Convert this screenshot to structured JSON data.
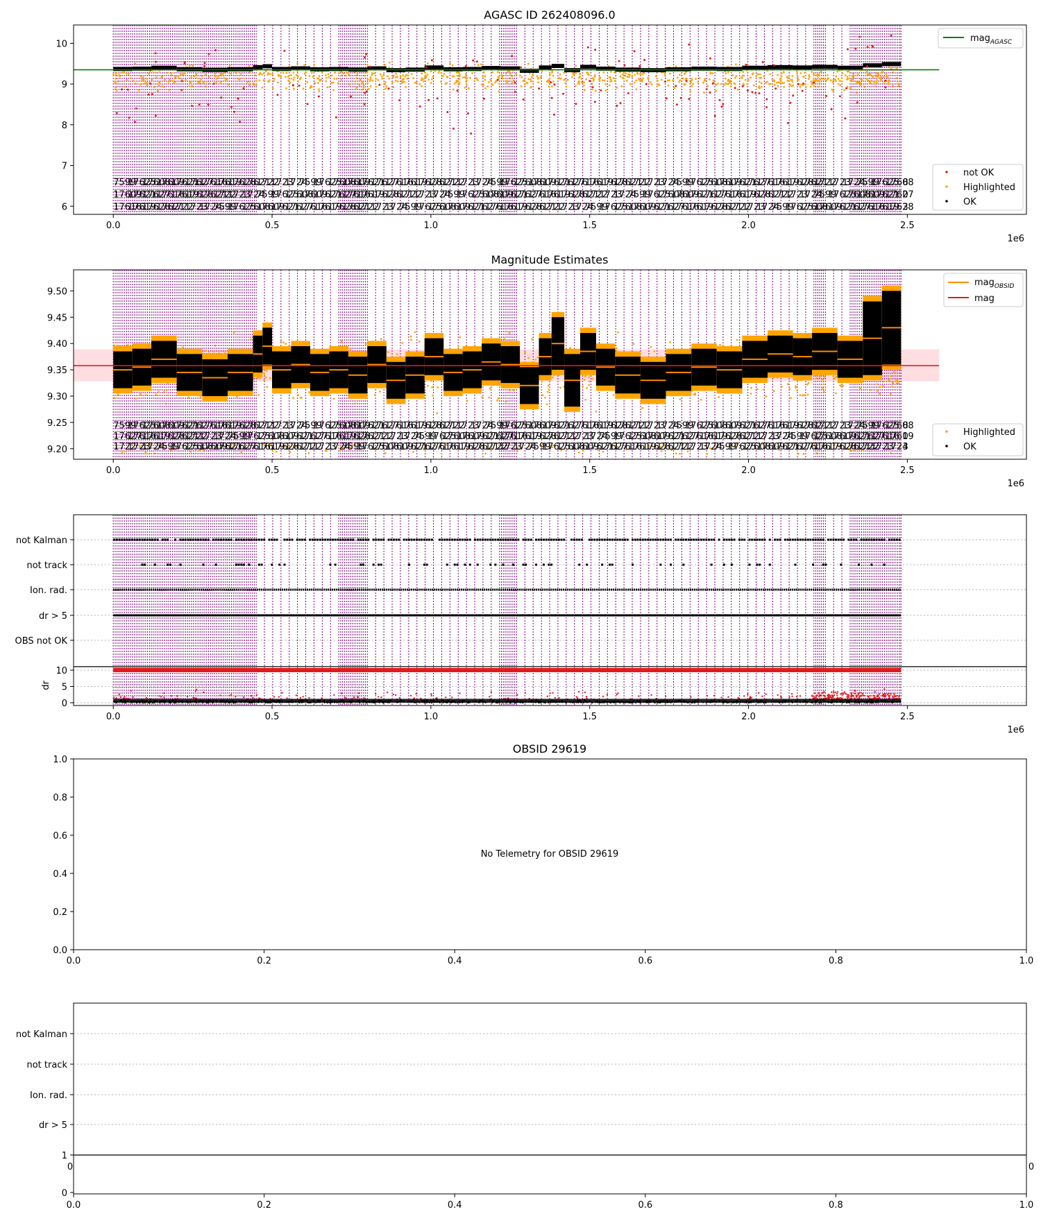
{
  "figure": {
    "background": "#ffffff"
  },
  "colors": {
    "ok": "#000000",
    "highlighted": "#ffa500",
    "not_ok": "#e31a1c",
    "agasc_line": "#008000",
    "obsid_line": "#ff8c00",
    "mag_line": "#e31a1c",
    "mag_band": "#ffd6da",
    "obsid_separator": "#800080",
    "grid": "#b0b0b0"
  },
  "chart_data": [
    {
      "id": "agasc",
      "type": "scatter",
      "title": "AGASC ID 262408096.0",
      "xlabel": "",
      "ylabel": "",
      "x_offset_label": "1e6",
      "xlim": [
        -0.125,
        2.875
      ],
      "ylim": [
        5.8,
        10.45
      ],
      "xticks": [
        0.0,
        0.5,
        1.0,
        1.5,
        2.0,
        2.5
      ],
      "xtick_labels": [
        "0.0",
        "0.5",
        "1.0",
        "1.5",
        "2.0",
        "2.5"
      ],
      "yticks": [
        6,
        7,
        8,
        9,
        10
      ],
      "ytick_labels": [
        "6",
        "7",
        "8",
        "9",
        "10"
      ],
      "data_x_range": [
        0.0,
        2.48
      ],
      "series": [
        {
          "name": "not OK",
          "kind": "points",
          "y_center": 9.05,
          "y_spread": 0.9,
          "count": 140,
          "color_key": "not_ok"
        },
        {
          "name": "Highlighted",
          "kind": "points",
          "y_center": 9.2,
          "y_spread": 0.35,
          "count": 900,
          "color_key": "highlighted"
        },
        {
          "name": "OK",
          "kind": "band",
          "y_center": 9.36,
          "y_spread": 0.05,
          "color_key": "ok"
        }
      ],
      "reference_line": {
        "name": "mag$_{AGASC}$",
        "y": 9.35,
        "x_range": [
          -0.125,
          2.6
        ],
        "color_key": "agasc_line"
      },
      "legend_top": {
        "position": "top-right",
        "entries": [
          {
            "label": "mag",
            "sub": "AGASC",
            "color_key": "agasc_line",
            "marker": "line"
          }
        ]
      },
      "legend_bottom": {
        "position": "bottom-right",
        "entries": [
          {
            "label": "not OK",
            "color_key": "not_ok",
            "marker": "dot"
          },
          {
            "label": "Highlighted",
            "color_key": "highlighted",
            "marker": "dot"
          },
          {
            "label": "OK",
            "color_key": "ok",
            "marker": "dot"
          }
        ]
      },
      "obsid_label_rows": {
        "first": "5239",
        "y": [
          6.6,
          6.3,
          6.0
        ],
        "row_starts": [
          "5?",
          "5?",
          "36"
        ],
        "legible_fragments": [
          "7599",
          "17625",
          "17608",
          "17609",
          "17621",
          "17627",
          "17616",
          "17619",
          "17628",
          "17621",
          "1722",
          "1723",
          "1724"
        ],
        "last": [
          "8",
          "0",
          "3"
        ]
      }
    },
    {
      "id": "magnitude",
      "type": "scatter",
      "title": "Magnitude Estimates",
      "xlabel": "",
      "ylabel": "",
      "x_offset_label": "1e6",
      "xlim": [
        -0.125,
        2.875
      ],
      "ylim": [
        9.18,
        9.54
      ],
      "xticks": [
        0.0,
        0.5,
        1.0,
        1.5,
        2.0,
        2.5
      ],
      "xtick_labels": [
        "0.0",
        "0.5",
        "1.0",
        "1.5",
        "2.0",
        "2.5"
      ],
      "yticks": [
        9.2,
        9.25,
        9.3,
        9.35,
        9.4,
        9.45,
        9.5
      ],
      "ytick_labels": [
        "9.20",
        "9.25",
        "9.30",
        "9.35",
        "9.40",
        "9.45",
        "9.50"
      ],
      "data_x_range": [
        0.0,
        2.48
      ],
      "mag_line": {
        "name": "mag",
        "y": 9.358,
        "band": [
          9.328,
          9.389
        ],
        "x_range": [
          -0.125,
          2.6
        ],
        "color_key": "mag_line"
      },
      "segments": [
        {
          "x0": 0.0,
          "x1": 0.06,
          "y": 9.35
        },
        {
          "x0": 0.06,
          "x1": 0.12,
          "y": 9.355
        },
        {
          "x0": 0.12,
          "x1": 0.2,
          "y": 9.37
        },
        {
          "x0": 0.2,
          "x1": 0.28,
          "y": 9.345
        },
        {
          "x0": 0.28,
          "x1": 0.36,
          "y": 9.335
        },
        {
          "x0": 0.36,
          "x1": 0.44,
          "y": 9.345
        },
        {
          "x0": 0.44,
          "x1": 0.47,
          "y": 9.38
        },
        {
          "x0": 0.47,
          "x1": 0.5,
          "y": 9.395
        },
        {
          "x0": 0.5,
          "x1": 0.56,
          "y": 9.35
        },
        {
          "x0": 0.56,
          "x1": 0.62,
          "y": 9.36
        },
        {
          "x0": 0.62,
          "x1": 0.68,
          "y": 9.345
        },
        {
          "x0": 0.68,
          "x1": 0.74,
          "y": 9.35
        },
        {
          "x0": 0.74,
          "x1": 0.8,
          "y": 9.34
        },
        {
          "x0": 0.8,
          "x1": 0.86,
          "y": 9.36
        },
        {
          "x0": 0.86,
          "x1": 0.92,
          "y": 9.33
        },
        {
          "x0": 0.92,
          "x1": 0.98,
          "y": 9.34
        },
        {
          "x0": 0.98,
          "x1": 1.04,
          "y": 9.375
        },
        {
          "x0": 1.04,
          "x1": 1.1,
          "y": 9.345
        },
        {
          "x0": 1.1,
          "x1": 1.16,
          "y": 9.35
        },
        {
          "x0": 1.16,
          "x1": 1.22,
          "y": 9.365
        },
        {
          "x0": 1.22,
          "x1": 1.28,
          "y": 9.36
        },
        {
          "x0": 1.28,
          "x1": 1.34,
          "y": 9.32
        },
        {
          "x0": 1.34,
          "x1": 1.38,
          "y": 9.375
        },
        {
          "x0": 1.38,
          "x1": 1.42,
          "y": 9.4
        },
        {
          "x0": 1.42,
          "x1": 1.47,
          "y": 9.33
        },
        {
          "x0": 1.47,
          "x1": 1.52,
          "y": 9.385
        },
        {
          "x0": 1.52,
          "x1": 1.58,
          "y": 9.355
        },
        {
          "x0": 1.58,
          "x1": 1.66,
          "y": 9.34
        },
        {
          "x0": 1.66,
          "x1": 1.74,
          "y": 9.33
        },
        {
          "x0": 1.74,
          "x1": 1.82,
          "y": 9.345
        },
        {
          "x0": 1.82,
          "x1": 1.9,
          "y": 9.355
        },
        {
          "x0": 1.9,
          "x1": 1.98,
          "y": 9.35
        },
        {
          "x0": 1.98,
          "x1": 2.06,
          "y": 9.37
        },
        {
          "x0": 2.06,
          "x1": 2.14,
          "y": 9.38
        },
        {
          "x0": 2.14,
          "x1": 2.2,
          "y": 9.375
        },
        {
          "x0": 2.2,
          "x1": 2.28,
          "y": 9.385
        },
        {
          "x0": 2.28,
          "x1": 2.36,
          "y": 9.37
        },
        {
          "x0": 2.36,
          "x1": 2.42,
          "y": 9.41
        },
        {
          "x0": 2.42,
          "x1": 2.48,
          "y": 9.43
        }
      ],
      "legend_top": {
        "position": "top-right",
        "entries": [
          {
            "label": "mag",
            "sub": "OBSID",
            "color_key": "obsid_line",
            "marker": "line"
          },
          {
            "label": "mag",
            "color_key": "mag_line",
            "marker": "line"
          }
        ]
      },
      "legend_bottom": {
        "position": "bottom-right",
        "entries": [
          {
            "label": "Highlighted",
            "color_key": "highlighted",
            "marker": "dot"
          },
          {
            "label": "OK",
            "color_key": "ok",
            "marker": "dot"
          }
        ]
      },
      "obsid_label_rows": {
        "y": [
          9.245,
          9.225,
          9.205
        ]
      }
    },
    {
      "id": "flags",
      "type": "scatter",
      "title": "",
      "xlabel": "",
      "ylabel": "dr",
      "x_offset_label": "1e6",
      "xlim": [
        -0.125,
        2.875
      ],
      "xticks": [
        0.0,
        0.5,
        1.0,
        1.5,
        2.0,
        2.5
      ],
      "xtick_labels": [
        "0.0",
        "0.5",
        "1.0",
        "1.5",
        "2.0",
        "2.5"
      ],
      "flag_rows": [
        "not Kalman",
        "not track",
        "Ion. rad.",
        "dr > 5",
        "OBS not OK"
      ],
      "dr_yticks": [
        0,
        5,
        10
      ],
      "dr_ytick_labels": [
        "0",
        "5",
        "10"
      ],
      "dr_ylim": [
        -0.3,
        10.6
      ]
    },
    {
      "id": "obsid",
      "type": "scatter",
      "title": "OBSID 29619",
      "message": "No Telemetry for OBSID 29619",
      "xlim": [
        0,
        1
      ],
      "ylim": [
        0,
        1
      ],
      "xticks": [
        0.0,
        0.2,
        0.4,
        0.6,
        0.8,
        1.0
      ],
      "xtick_labels": [
        "0.0",
        "0.2",
        "0.4",
        "0.6",
        "0.8",
        "1.0"
      ],
      "yticks": [
        0.0,
        0.2,
        0.4,
        0.6,
        0.8,
        1.0
      ],
      "ytick_labels": [
        "0.0",
        "0.2",
        "0.4",
        "0.6",
        "0.8",
        "1.0"
      ]
    },
    {
      "id": "obsid-flags",
      "type": "scatter",
      "title": "",
      "flag_rows": [
        "not Kalman",
        "not track",
        "Ion. rad.",
        "dr > 5"
      ],
      "sub_yticks": [
        0,
        1
      ],
      "sub_ytick_labels": [
        "0",
        "1"
      ],
      "xticks": [
        0.0,
        0.2,
        0.4,
        0.6,
        0.8,
        1.0
      ],
      "xtick_labels": [
        "0.0",
        "0.2",
        "0.4",
        "0.6",
        "0.8",
        "1.0"
      ],
      "clipped_tick_left": "0",
      "clipped_tick_right": "0"
    }
  ]
}
